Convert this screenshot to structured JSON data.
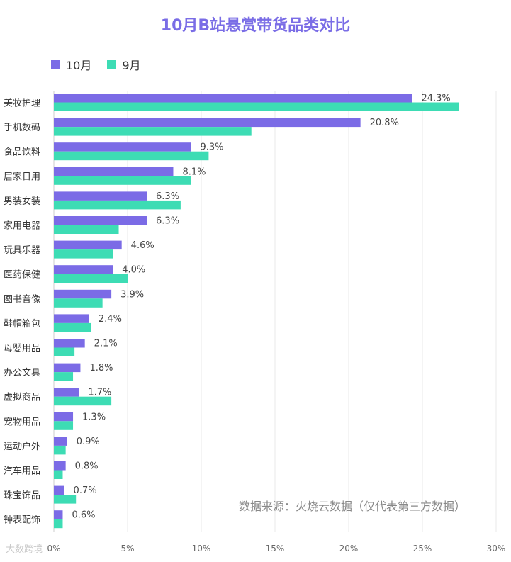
{
  "chart_data": {
    "type": "bar",
    "orientation": "horizontal",
    "title": "10月B站悬赏带货品类对比",
    "categories": [
      "美妆护理",
      "手机数码",
      "食品饮料",
      "居家日用",
      "男装女装",
      "家用电器",
      "玩具乐器",
      "医药保健",
      "图书音像",
      "鞋帽箱包",
      "母婴用品",
      "办公文具",
      "虚拟商品",
      "宠物用品",
      "运动户外",
      "汽车用品",
      "珠宝饰品",
      "钟表配饰"
    ],
    "series": [
      {
        "name": "10月",
        "color": "#7b6be6",
        "values": [
          24.3,
          20.8,
          9.3,
          8.1,
          6.3,
          6.3,
          4.6,
          4.0,
          3.9,
          2.4,
          2.1,
          1.8,
          1.7,
          1.3,
          0.9,
          0.8,
          0.7,
          0.6
        ],
        "labels": [
          "24.3%",
          "20.8%",
          "9.3%",
          "8.1%",
          "6.3%",
          "6.3%",
          "4.6%",
          "4.0%",
          "3.9%",
          "2.4%",
          "2.1%",
          "1.8%",
          "1.7%",
          "1.3%",
          "0.9%",
          "0.8%",
          "0.7%",
          "0.6%"
        ]
      },
      {
        "name": "9月",
        "color": "#3ddcb4",
        "values": [
          27.5,
          13.4,
          10.5,
          9.3,
          8.6,
          4.4,
          4.0,
          5.0,
          3.3,
          2.5,
          1.4,
          1.3,
          3.9,
          1.3,
          0.8,
          0.6,
          1.5,
          0.6
        ]
      }
    ],
    "xlim": [
      0,
      30
    ],
    "xticks": [
      "0%",
      "5%",
      "10%",
      "15%",
      "20%",
      "25%",
      "30%"
    ],
    "grid": true,
    "legend_position": "top-left"
  },
  "source_text": "数据来源：火烧云数据（仅代表第三方数据）",
  "watermark_text": "大数跨境"
}
